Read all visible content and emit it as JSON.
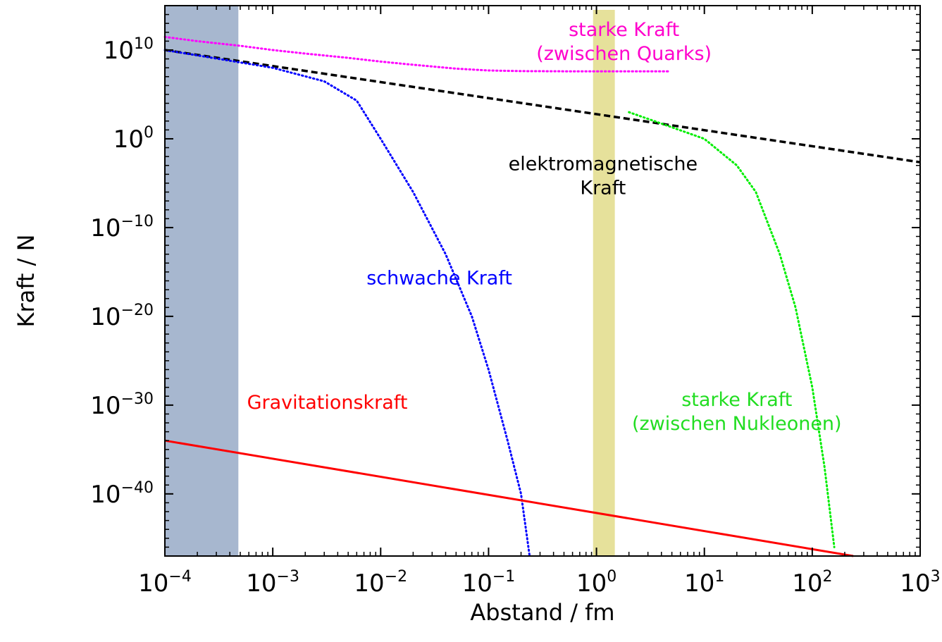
{
  "chart_data": {
    "type": "line",
    "xscale": "log",
    "yscale": "log",
    "xlabel": "Abstand / fm",
    "ylabel": "Kraft / N",
    "xlim": [
      0.0001,
      1000
    ],
    "ylim": [
      1e-47,
      1000000000000000.0
    ],
    "grid": false,
    "x_ticks": [
      {
        "base": "10",
        "exp": "−4",
        "value": 0.0001
      },
      {
        "base": "10",
        "exp": "−3",
        "value": 0.001
      },
      {
        "base": "10",
        "exp": "−2",
        "value": 0.01
      },
      {
        "base": "10",
        "exp": "−1",
        "value": 0.1
      },
      {
        "base": "10",
        "exp": "0",
        "value": 1
      },
      {
        "base": "10",
        "exp": "1",
        "value": 10
      },
      {
        "base": "10",
        "exp": "2",
        "value": 100
      },
      {
        "base": "10",
        "exp": "3",
        "value": 1000
      }
    ],
    "y_ticks": [
      {
        "base": "10",
        "exp": "−40",
        "value": 1e-40
      },
      {
        "base": "10",
        "exp": "−30",
        "value": 1e-30
      },
      {
        "base": "10",
        "exp": "−20",
        "value": 1e-20
      },
      {
        "base": "10",
        "exp": "−10",
        "value": 1e-10
      },
      {
        "base": "10",
        "exp": "0",
        "value": 1
      },
      {
        "base": "10",
        "exp": "10",
        "value": 10000000000.0
      }
    ],
    "bands": [
      {
        "x": [
          0.0001,
          0.00048
        ],
        "color": "#a7b7cf"
      },
      {
        "x": [
          0.93,
          1.48
        ],
        "color": "#e6e19b"
      }
    ],
    "series": [
      {
        "color": "#ff00ff",
        "style": "dotted",
        "x": [
          0.0001,
          0.0002,
          0.0005,
          0.001,
          0.002,
          0.005,
          0.01,
          0.02,
          0.05,
          0.1,
          0.2,
          0.5,
          1,
          2,
          4.7
        ],
        "y": [
          300000000000.0,
          100000000000.0,
          30000000000.0,
          10000000000.0,
          4000000000.0,
          1300000000.0,
          500000000.0,
          220000000.0,
          80000000.0,
          50000000.0,
          42000000.0,
          40000000.0,
          40000000.0,
          40000000.0,
          40000000.0
        ]
      },
      {
        "color": "#000000",
        "style": "dashed",
        "x": [
          0.0001,
          1000
        ],
        "y": [
          10000000000.0,
          0.0023
        ]
      },
      {
        "color": "#0000ff",
        "style": "dotted",
        "x": [
          0.0001,
          0.001,
          0.003,
          0.006,
          0.01,
          0.02,
          0.04,
          0.07,
          0.1,
          0.15,
          0.2,
          0.24
        ],
        "y": [
          10000000000.0,
          100000000.0,
          3000000.0,
          20000.0,
          1,
          1e-06,
          1e-13,
          1e-20,
          1e-26,
          1e-34,
          1e-40,
          1e-47
        ]
      },
      {
        "color": "#00ee00",
        "style": "dotted",
        "x": [
          2,
          5,
          10,
          20,
          30,
          50,
          70,
          100,
          130,
          160
        ],
        "y": [
          1000.0,
          20,
          1,
          0.001,
          1e-06,
          1e-13,
          1e-19,
          1e-28,
          1e-37,
          1e-46
        ]
      },
      {
        "color": "#ff0000",
        "style": "solid",
        "x": [
          0.0001,
          240
        ],
        "y": [
          1e-34,
          1e-47
        ]
      }
    ],
    "annotations": [
      {
        "lines": [
          "starke Kraft",
          "(zwischen Quarks)"
        ],
        "color": "#ff00cc",
        "at": [
          1.8,
          400000000000.0
        ]
      },
      {
        "lines": [
          "elektromagnetische",
          "Kraft"
        ],
        "color": "#000000",
        "at": [
          1.15,
          0.0003
        ]
      },
      {
        "lines": [
          "schwache Kraft"
        ],
        "color": "#0000ff",
        "at": [
          0.035,
          4e-17
        ]
      },
      {
        "lines": [
          "Gravitationskraft"
        ],
        "color": "#ff0000",
        "at": [
          0.0032,
          4e-31
        ]
      },
      {
        "lines": [
          "starke Kraft",
          "(zwischen Nukleonen)"
        ],
        "color": "#22dd22",
        "at": [
          20,
          8e-31
        ]
      }
    ]
  }
}
